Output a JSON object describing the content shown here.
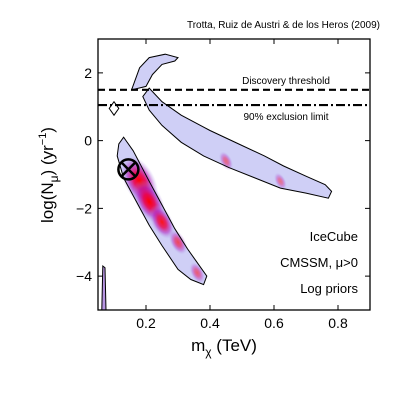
{
  "header": {
    "citation": "Trotta, Ruiz de Austri & de los Heros (2009)"
  },
  "chart_data": {
    "type": "heatmap",
    "xlabel_main": "m",
    "xlabel_sub": "χ",
    "xlabel_unit": " (TeV)",
    "ylabel_main": "log(N",
    "ylabel_sub": "μ",
    "ylabel_mid": ") (yr",
    "ylabel_sup": "−1",
    "ylabel_end": ")",
    "xlim": [
      0.05,
      0.9
    ],
    "ylim": [
      -5,
      3
    ],
    "xticks": [
      0.2,
      0.4,
      0.6,
      0.8
    ],
    "xtick_labels": [
      "0.2",
      "0.4",
      "0.6",
      "0.8"
    ],
    "yticks": [
      -4,
      -2,
      0,
      2
    ],
    "ytick_labels": [
      "−4",
      "−2",
      "0",
      "2"
    ],
    "reference_lines": [
      {
        "label": "Discovery threshold",
        "y": 1.5,
        "style": "dashed"
      },
      {
        "label": "90% exclusion limit",
        "y": 1.05,
        "style": "dash-dot"
      }
    ],
    "contours": [
      {
        "name": "main_band",
        "points": [
          [
            0.13,
            0.1
          ],
          [
            0.16,
            -0.3
          ],
          [
            0.21,
            -1.2
          ],
          [
            0.25,
            -1.9
          ],
          [
            0.29,
            -2.6
          ],
          [
            0.33,
            -3.2
          ],
          [
            0.36,
            -3.6
          ],
          [
            0.39,
            -4.0
          ],
          [
            0.38,
            -4.25
          ],
          [
            0.34,
            -4.1
          ],
          [
            0.3,
            -3.8
          ],
          [
            0.25,
            -3.1
          ],
          [
            0.21,
            -2.5
          ],
          [
            0.17,
            -1.8
          ],
          [
            0.13,
            -1.1
          ],
          [
            0.11,
            -0.45
          ],
          [
            0.115,
            -0.1
          ]
        ]
      },
      {
        "name": "upper_arm",
        "points": [
          [
            0.21,
            1.55
          ],
          [
            0.25,
            1.15
          ],
          [
            0.31,
            0.75
          ],
          [
            0.4,
            0.3
          ],
          [
            0.49,
            -0.1
          ],
          [
            0.57,
            -0.45
          ],
          [
            0.63,
            -0.75
          ],
          [
            0.7,
            -1.05
          ],
          [
            0.76,
            -1.3
          ],
          [
            0.78,
            -1.5
          ],
          [
            0.77,
            -1.7
          ],
          [
            0.7,
            -1.55
          ],
          [
            0.62,
            -1.4
          ],
          [
            0.54,
            -1.1
          ],
          [
            0.46,
            -0.8
          ],
          [
            0.38,
            -0.45
          ],
          [
            0.31,
            -0.05
          ],
          [
            0.25,
            0.45
          ],
          [
            0.21,
            0.9
          ],
          [
            0.19,
            1.3
          ]
        ]
      },
      {
        "name": "top_tongue",
        "points": [
          [
            0.155,
            1.5
          ],
          [
            0.18,
            2.15
          ],
          [
            0.21,
            2.45
          ],
          [
            0.26,
            2.55
          ],
          [
            0.3,
            2.45
          ],
          [
            0.29,
            2.35
          ],
          [
            0.25,
            2.25
          ],
          [
            0.22,
            1.95
          ],
          [
            0.2,
            1.6
          ]
        ]
      },
      {
        "name": "diamond",
        "points": [
          [
            0.085,
            0.95
          ],
          [
            0.1,
            1.15
          ],
          [
            0.115,
            0.95
          ],
          [
            0.1,
            0.75
          ]
        ]
      },
      {
        "name": "left_edge",
        "points": [
          [
            0.065,
            -3.7
          ],
          [
            0.072,
            -3.75
          ],
          [
            0.075,
            -5.0
          ],
          [
            0.062,
            -5.0
          ]
        ]
      }
    ],
    "best_fit_marker": {
      "x": 0.145,
      "y": -0.85
    },
    "density_peaks": [
      {
        "x": 0.18,
        "y": -1.2,
        "level": 1.0
      },
      {
        "x": 0.21,
        "y": -1.8,
        "level": 0.8
      },
      {
        "x": 0.25,
        "y": -2.4,
        "level": 0.55
      },
      {
        "x": 0.3,
        "y": -3.0,
        "level": 0.3
      },
      {
        "x": 0.36,
        "y": -3.9,
        "level": 0.2
      },
      {
        "x": 0.45,
        "y": -0.6,
        "level": 0.15
      },
      {
        "x": 0.62,
        "y": -1.2,
        "level": 0.1
      }
    ],
    "annotations": [
      "IceCube",
      "CMSSM, μ>0",
      "Log priors"
    ],
    "colors": {
      "peak": "#ff0000",
      "high": "#e0006a",
      "mid": "#a032c8",
      "low": "#a8a8ef",
      "faint": "#dcdcf8"
    }
  }
}
